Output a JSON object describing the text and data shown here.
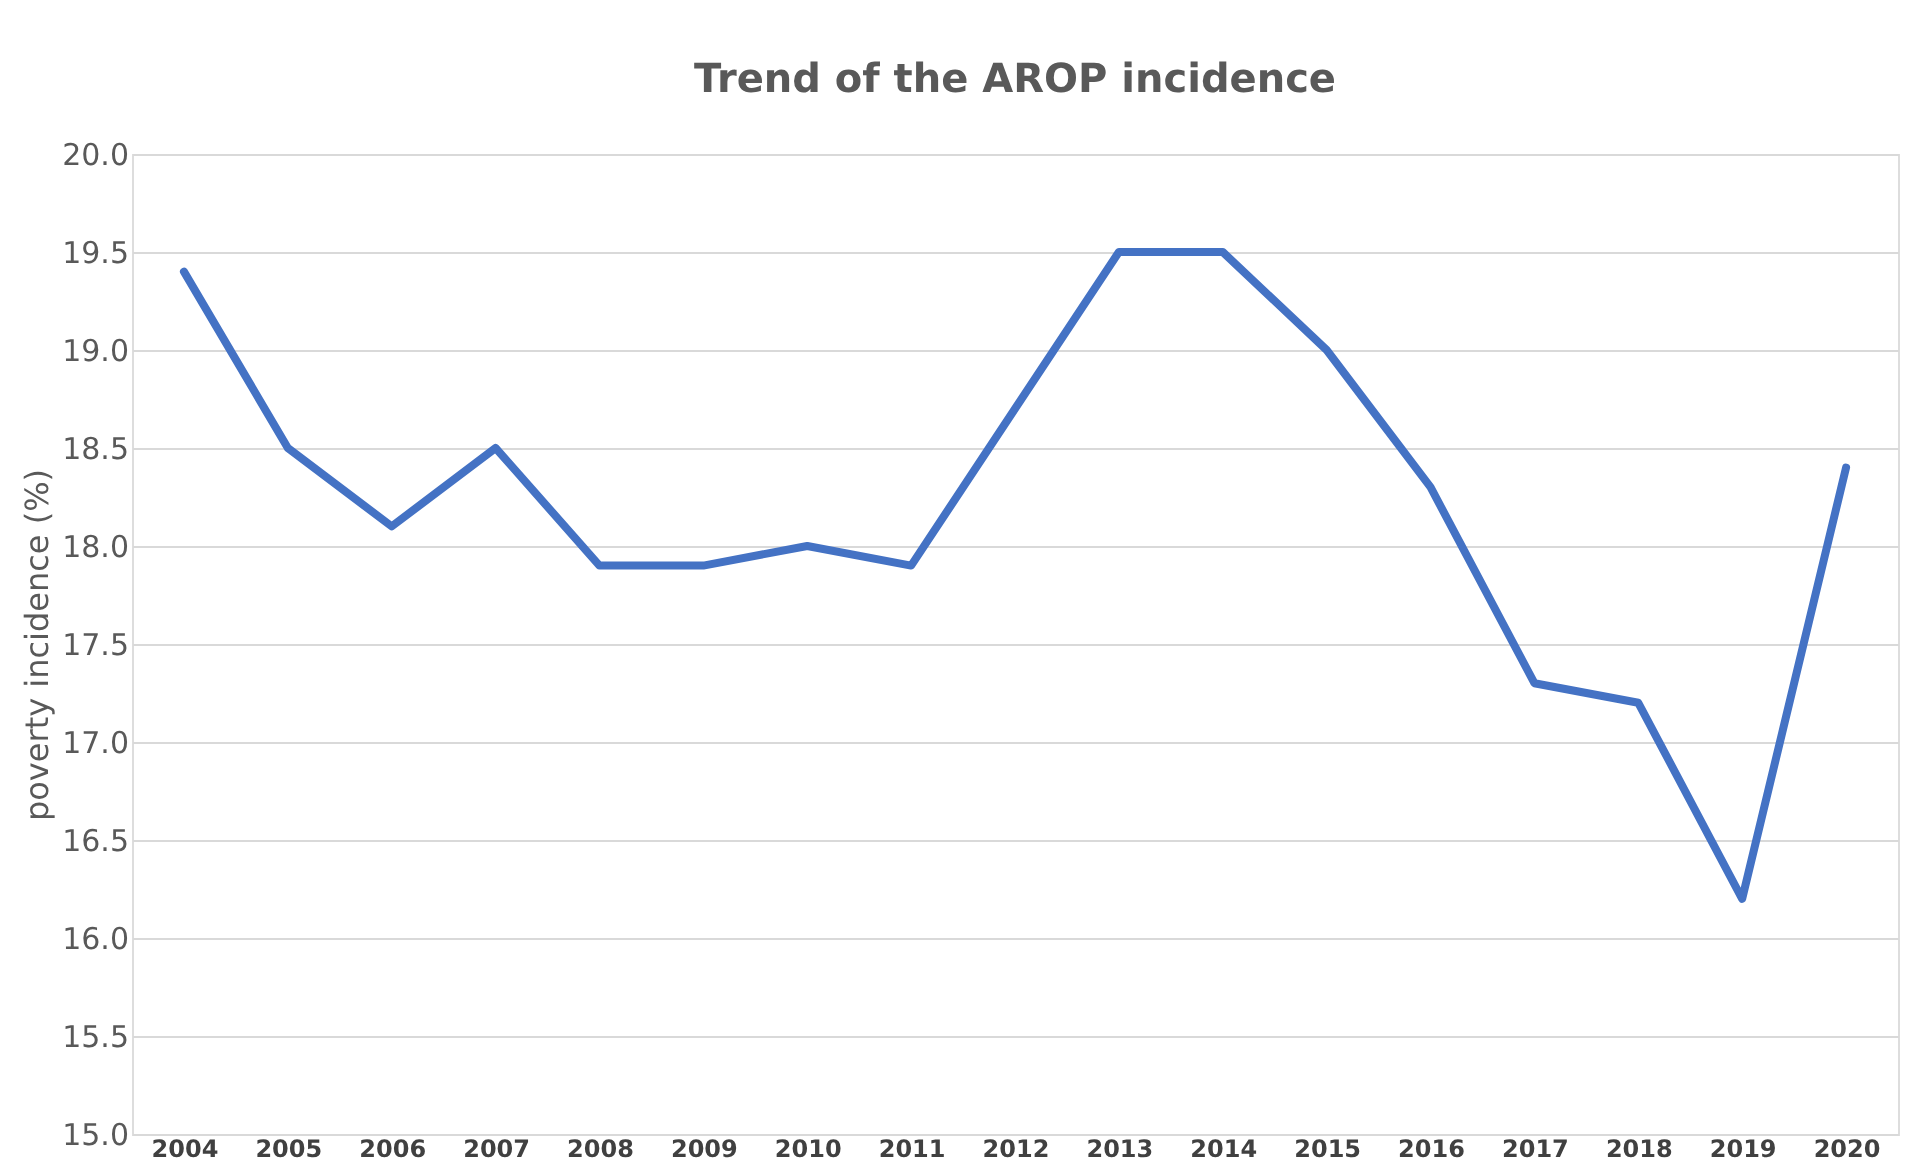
{
  "chart_data": {
    "type": "line",
    "title": "Trend of the AROP incidence",
    "ylabel": "poverty incidence (%)",
    "categories": [
      "2004",
      "2005",
      "2006",
      "2007",
      "2008",
      "2009",
      "2010",
      "2011",
      "2012",
      "2013",
      "2014",
      "2015",
      "2016",
      "2017",
      "2018",
      "2019",
      "2020"
    ],
    "series": [
      {
        "color": "#4472c4",
        "values": [
          19.4,
          18.5,
          18.1,
          18.5,
          17.9,
          17.9,
          18.0,
          17.9,
          18.7,
          19.5,
          19.5,
          19.0,
          18.3,
          17.3,
          17.2,
          16.2,
          18.4
        ]
      }
    ],
    "ylim": [
      15,
      20
    ],
    "yticks": [
      {
        "value": 15,
        "label": "15.0"
      },
      {
        "value": 15.5,
        "label": "15.5"
      },
      {
        "value": 16,
        "label": "16.0"
      },
      {
        "value": 16.5,
        "label": "16.5"
      },
      {
        "value": 17,
        "label": "17.0"
      },
      {
        "value": 17.5,
        "label": "17.5"
      },
      {
        "value": 18,
        "label": "18.0"
      },
      {
        "value": 18.5,
        "label": "18.5"
      },
      {
        "value": 19,
        "label": "19.0"
      },
      {
        "value": 19.5,
        "label": "19.5"
      },
      {
        "value": 20,
        "label": "20.0"
      }
    ],
    "grid": "y",
    "marker": "none",
    "line_style": "solid"
  }
}
